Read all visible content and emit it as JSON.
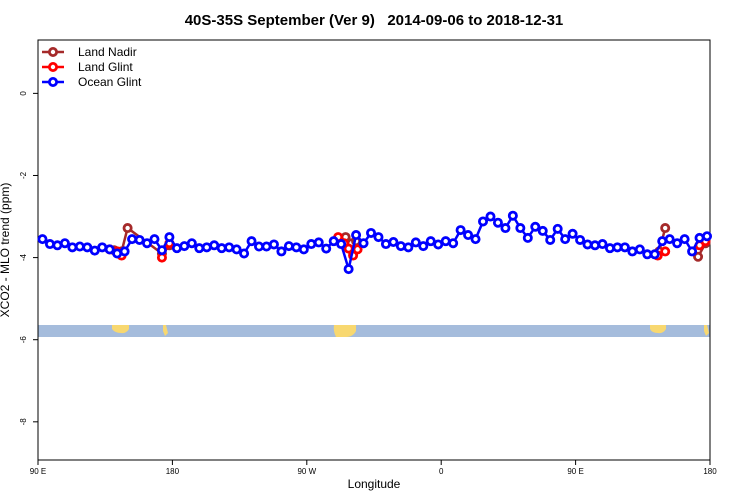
{
  "chart_data": {
    "type": "line",
    "title": "40S-35S September (Ver 9)   2014-09-06 to 2018-12-31",
    "xlabel": "Longitude",
    "ylabel": "XCO2 - MLO trend (ppm)",
    "xlim": [
      90,
      540
    ],
    "ylim": [
      -8.93,
      1.3
    ],
    "xticks": [
      {
        "value": 90,
        "label": "90 E"
      },
      {
        "value": 180,
        "label": "180"
      },
      {
        "value": 270,
        "label": "90 W"
      },
      {
        "value": 360,
        "label": "0"
      },
      {
        "value": 450,
        "label": "90 E"
      },
      {
        "value": 540,
        "label": "180"
      }
    ],
    "yticks": [
      0,
      -2,
      -4,
      -6,
      -8
    ],
    "legend": "top-left",
    "series": [
      {
        "name": "Land Nadir",
        "color": "#a52a2a",
        "x": [
          141,
          146,
          150,
          173,
          178,
          null,
          296,
          300,
          303,
          null,
          506,
          510,
          null,
          532,
          537
        ],
        "values": [
          -3.82,
          -3.85,
          -3.28,
          -3.9,
          -3.7,
          null,
          -3.5,
          -3.65,
          -3.6,
          null,
          -3.85,
          -3.28,
          null,
          -3.98,
          -3.65
        ]
      },
      {
        "name": "Land Glint",
        "color": "#ff0000",
        "x": [
          138,
          143,
          146,
          null,
          173,
          178,
          null,
          291,
          295,
          298,
          301,
          304,
          null,
          505,
          510,
          null,
          533,
          537
        ],
        "values": [
          -3.8,
          -3.85,
          -3.95,
          null,
          -4.0,
          -3.65,
          null,
          -3.5,
          -3.65,
          -3.78,
          -3.95,
          -3.8,
          null,
          -3.95,
          -3.85,
          null,
          -3.7,
          -3.6
        ]
      },
      {
        "name": "Ocean Glint",
        "color": "#0000ff",
        "x": [
          93,
          98,
          103,
          108,
          113,
          118,
          123,
          128,
          133,
          138,
          143,
          148,
          153,
          158,
          163,
          168,
          173,
          178,
          183,
          188,
          193,
          198,
          203,
          208,
          213,
          218,
          223,
          228,
          233,
          238,
          243,
          248,
          253,
          258,
          263,
          268,
          273,
          278,
          283,
          288,
          293,
          298,
          303,
          308,
          313,
          318,
          323,
          328,
          333,
          338,
          343,
          348,
          353,
          358,
          363,
          368,
          373,
          378,
          383,
          388,
          393,
          398,
          403,
          408,
          413,
          418,
          423,
          428,
          433,
          438,
          443,
          448,
          453,
          458,
          463,
          468,
          473,
          478,
          483,
          488,
          493,
          498,
          503,
          508,
          513,
          518,
          523,
          528,
          533,
          538
        ],
        "values": [
          -3.55,
          -3.67,
          -3.7,
          -3.65,
          -3.75,
          -3.73,
          -3.75,
          -3.83,
          -3.75,
          -3.8,
          -3.9,
          -3.85,
          -3.55,
          -3.57,
          -3.65,
          -3.55,
          -3.82,
          -3.5,
          -3.77,
          -3.72,
          -3.65,
          -3.77,
          -3.75,
          -3.7,
          -3.77,
          -3.75,
          -3.8,
          -3.9,
          -3.6,
          -3.73,
          -3.73,
          -3.68,
          -3.85,
          -3.72,
          -3.75,
          -3.8,
          -3.67,
          -3.63,
          -3.78,
          -3.6,
          -3.67,
          -4.28,
          -3.45,
          -3.65,
          -3.4,
          -3.5,
          -3.67,
          -3.62,
          -3.72,
          -3.75,
          -3.63,
          -3.72,
          -3.6,
          -3.68,
          -3.6,
          -3.65,
          -3.33,
          -3.45,
          -3.55,
          -3.12,
          -3.0,
          -3.15,
          -3.28,
          -2.98,
          -3.28,
          -3.52,
          -3.25,
          -3.35,
          -3.57,
          -3.3,
          -3.55,
          -3.42,
          -3.57,
          -3.68,
          -3.7,
          -3.67,
          -3.77,
          -3.75,
          -3.75,
          -3.85,
          -3.8,
          -3.92,
          -3.92,
          -3.6,
          -3.55,
          -3.65,
          -3.55,
          -3.85,
          -3.52,
          -3.48
        ]
      }
    ]
  }
}
